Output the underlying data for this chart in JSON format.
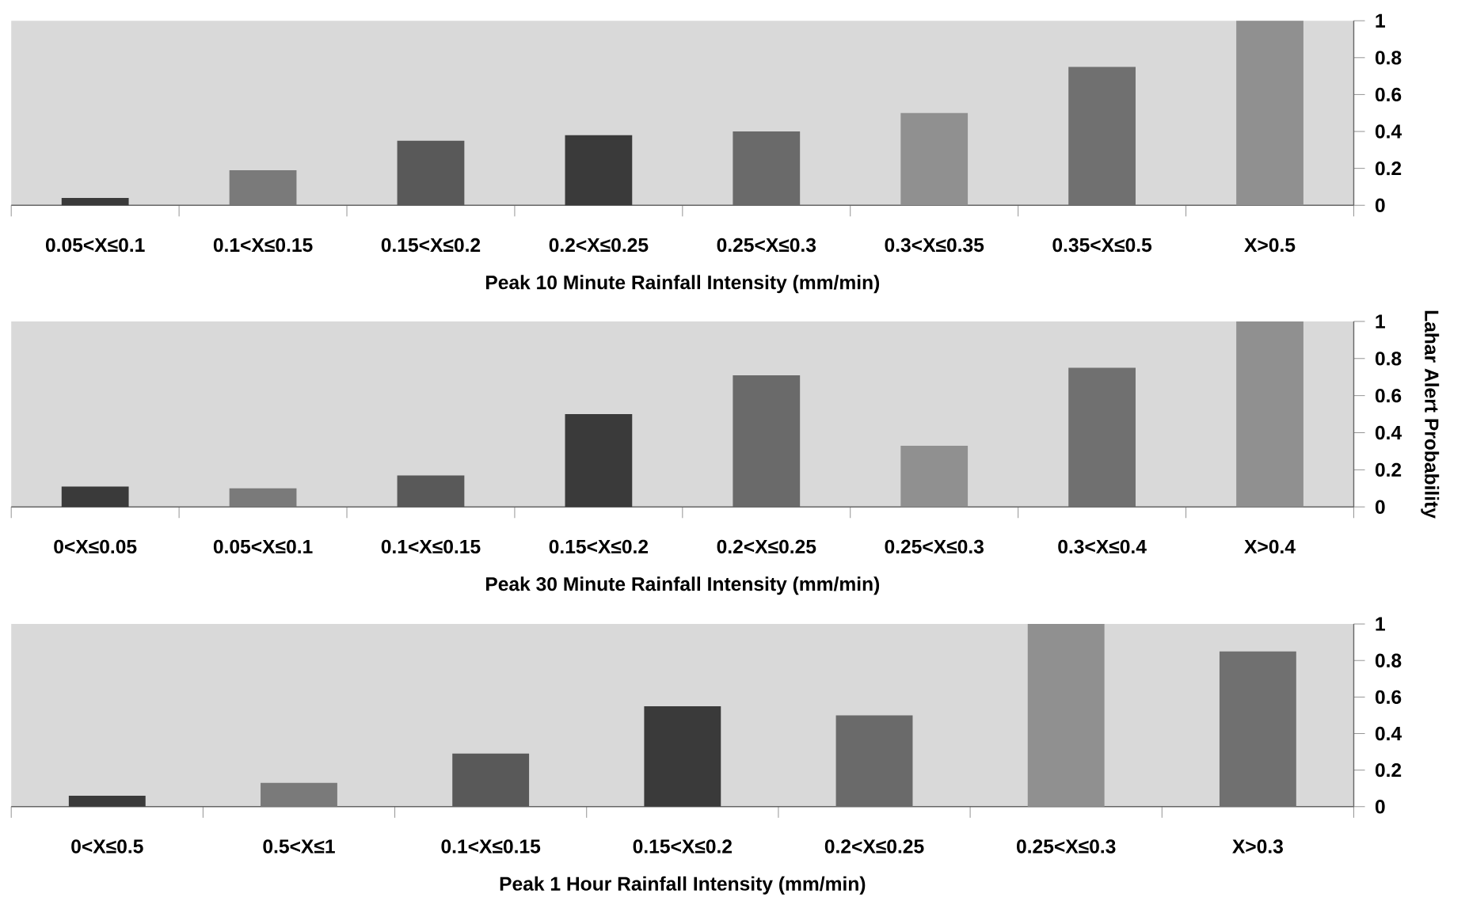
{
  "chart_data": [
    {
      "type": "bar",
      "xlabel": "Peak 10 Minute Rainfall Intensity (mm/min)",
      "categories": [
        "0.05<X≤0.1",
        "0.1<X≤0.15",
        "0.15<X≤0.2",
        "0.2<X≤0.25",
        "0.25<X≤0.3",
        "0.3<X≤0.35",
        "0.35<X≤0.5",
        "X>0.5"
      ],
      "values": [
        0.04,
        0.19,
        0.35,
        0.38,
        0.4,
        0.5,
        0.75,
        1.0
      ],
      "colors": [
        "#3a3a3a",
        "#7a7a7a",
        "#595959",
        "#3a3a3a",
        "#6a6a6a",
        "#909090",
        "#707070",
        "#909090"
      ],
      "ylim": [
        0,
        1
      ],
      "yticks": [
        0,
        0.2,
        0.4,
        0.6,
        0.8,
        1
      ]
    },
    {
      "type": "bar",
      "xlabel": "Peak 30 Minute Rainfall Intensity (mm/min)",
      "ylabel": "Lahar Alert Probability",
      "categories": [
        "0<X≤0.05",
        "0.05<X≤0.1",
        "0.1<X≤0.15",
        "0.15<X≤0.2",
        "0.2<X≤0.25",
        "0.25<X≤0.3",
        "0.3<X≤0.4",
        "X>0.4"
      ],
      "values": [
        0.11,
        0.1,
        0.17,
        0.5,
        0.71,
        0.33,
        0.75,
        1.0
      ],
      "colors": [
        "#3a3a3a",
        "#7a7a7a",
        "#595959",
        "#3a3a3a",
        "#6a6a6a",
        "#909090",
        "#707070",
        "#909090"
      ],
      "ylim": [
        0,
        1
      ],
      "yticks": [
        0,
        0.2,
        0.4,
        0.6,
        0.8,
        1
      ]
    },
    {
      "type": "bar",
      "xlabel": "Peak 1 Hour Rainfall Intensity (mm/min)",
      "categories": [
        "0<X≤0.5",
        "0.5<X≤1",
        "0.1<X≤0.15",
        "0.15<X≤0.2",
        "0.2<X≤0.25",
        "0.25<X≤0.3",
        "X>0.3"
      ],
      "values": [
        0.06,
        0.13,
        0.29,
        0.55,
        0.5,
        1.0,
        0.85
      ],
      "colors": [
        "#3a3a3a",
        "#7a7a7a",
        "#595959",
        "#3a3a3a",
        "#6a6a6a",
        "#909090",
        "#707070"
      ],
      "ylim": [
        0,
        1
      ],
      "yticks": [
        0,
        0.2,
        0.4,
        0.6,
        0.8,
        1
      ]
    }
  ]
}
